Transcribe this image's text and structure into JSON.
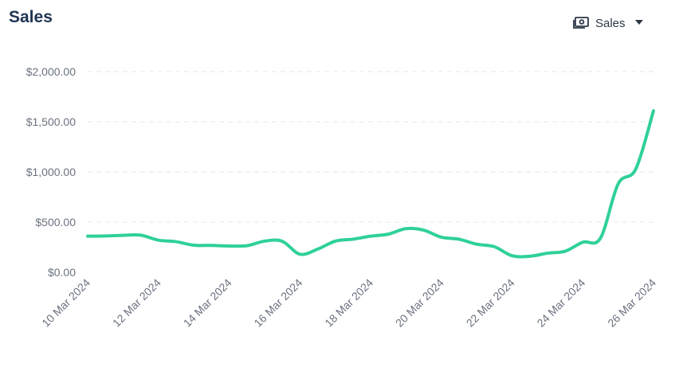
{
  "header": {
    "title": "Sales",
    "metric_selector": {
      "label": "Sales",
      "icon": "cash-icon",
      "caret_icon": "caret-down-icon"
    }
  },
  "colors": {
    "line": "#2fd197",
    "title": "#1f3553",
    "tick_text": "#6b7280",
    "grid": "#e5e7eb"
  },
  "chart_data": {
    "type": "line",
    "title": "Sales",
    "xlabel": "",
    "ylabel": "",
    "ylim": [
      0,
      2000
    ],
    "y_ticks": [
      0,
      500,
      1000,
      1500,
      2000
    ],
    "y_tick_labels": [
      "$0.00",
      "$500.00",
      "$1,000.00",
      "$1,500.00",
      "$2,000.00"
    ],
    "x_tick_labels": [
      "10 Mar 2024",
      "12 Mar 2024",
      "14 Mar 2024",
      "16 Mar 2024",
      "18 Mar 2024",
      "20 Mar 2024",
      "22 Mar 2024",
      "24 Mar 2024",
      "26 Mar 2024"
    ],
    "grid": true,
    "legend": "none",
    "series": [
      {
        "x": [
          "2024-03-10",
          "2024-03-10 12:00",
          "2024-03-11",
          "2024-03-11 12:00",
          "2024-03-12",
          "2024-03-12 12:00",
          "2024-03-13",
          "2024-03-13 12:00",
          "2024-03-14",
          "2024-03-14 12:00",
          "2024-03-15",
          "2024-03-15 12:00",
          "2024-03-16",
          "2024-03-16 12:00",
          "2024-03-17",
          "2024-03-17 12:00",
          "2024-03-18",
          "2024-03-18 12:00",
          "2024-03-19",
          "2024-03-19 12:00",
          "2024-03-20",
          "2024-03-20 12:00",
          "2024-03-21",
          "2024-03-21 12:00",
          "2024-03-22",
          "2024-03-22 12:00",
          "2024-03-23",
          "2024-03-23 12:00",
          "2024-03-24",
          "2024-03-24 12:00",
          "2024-03-25",
          "2024-03-25 12:00",
          "2024-03-26"
        ],
        "values": [
          360,
          362,
          368,
          370,
          320,
          305,
          270,
          268,
          262,
          265,
          310,
          310,
          180,
          230,
          310,
          330,
          360,
          380,
          435,
          420,
          350,
          330,
          280,
          255,
          165,
          160,
          190,
          210,
          300,
          340,
          880,
          1030,
          1610
        ]
      }
    ]
  }
}
